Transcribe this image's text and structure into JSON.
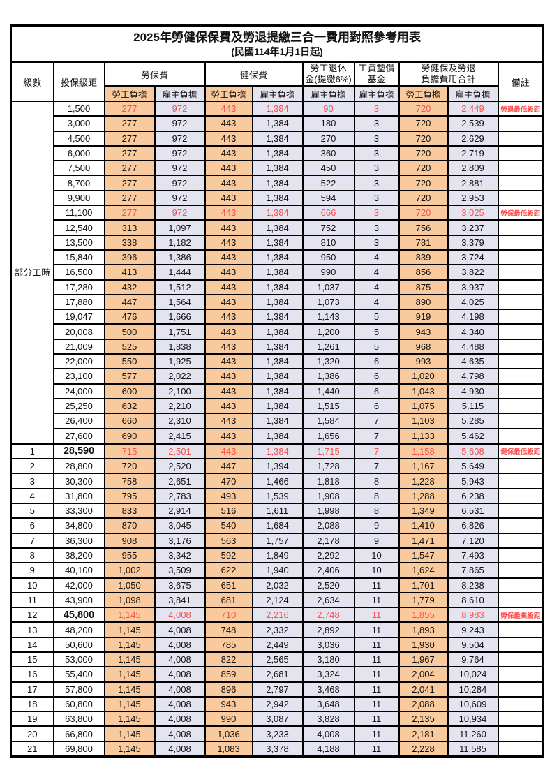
{
  "title": "2025年勞健保保費及勞退提繳三合一費用對照參考用表",
  "subtitle": "(民國114年1月1日起)",
  "colors": {
    "employee_col_bg": "#F8CA9E",
    "employer_col_bg": "#E4E4F1",
    "highlight_text": "#FB4F4C",
    "border": "#000000"
  },
  "headers": {
    "level": "級數",
    "bracket": "投保級距",
    "labor_ins": "勞保費",
    "health_ins": "健保費",
    "pension_line1": "勞工退休",
    "pension_line2": "金(提繳6%)",
    "wage_fund_line1": "工資墊償",
    "wage_fund_line2": "基金",
    "total_line1": "勞健保及勞退",
    "total_line2": "負擔費用合計",
    "note": "備註",
    "employee_share": "勞工負擔",
    "employer_share": "雇主負擔"
  },
  "part_time_label": "部分工時",
  "part_time_rowspan": 23,
  "rows": [
    {
      "level": null,
      "bracket": "1,500",
      "values": [
        "277",
        "972",
        "443",
        "1,384",
        "90",
        "3",
        "720",
        "2,449"
      ],
      "note": "勞退最低級距",
      "highlight": true,
      "bold_bracket": false
    },
    {
      "level": null,
      "bracket": "3,000",
      "values": [
        "277",
        "972",
        "443",
        "1,384",
        "180",
        "3",
        "720",
        "2,539"
      ],
      "note": "",
      "highlight": false,
      "bold_bracket": false
    },
    {
      "level": null,
      "bracket": "4,500",
      "values": [
        "277",
        "972",
        "443",
        "1,384",
        "270",
        "3",
        "720",
        "2,629"
      ],
      "note": "",
      "highlight": false,
      "bold_bracket": false
    },
    {
      "level": null,
      "bracket": "6,000",
      "values": [
        "277",
        "972",
        "443",
        "1,384",
        "360",
        "3",
        "720",
        "2,719"
      ],
      "note": "",
      "highlight": false,
      "bold_bracket": false
    },
    {
      "level": null,
      "bracket": "7,500",
      "values": [
        "277",
        "972",
        "443",
        "1,384",
        "450",
        "3",
        "720",
        "2,809"
      ],
      "note": "",
      "highlight": false,
      "bold_bracket": false
    },
    {
      "level": null,
      "bracket": "8,700",
      "values": [
        "277",
        "972",
        "443",
        "1,384",
        "522",
        "3",
        "720",
        "2,881"
      ],
      "note": "",
      "highlight": false,
      "bold_bracket": false
    },
    {
      "level": null,
      "bracket": "9,900",
      "values": [
        "277",
        "972",
        "443",
        "1,384",
        "594",
        "3",
        "720",
        "2,953"
      ],
      "note": "",
      "highlight": false,
      "bold_bracket": false
    },
    {
      "level": null,
      "bracket": "11,100",
      "values": [
        "277",
        "972",
        "443",
        "1,384",
        "666",
        "3",
        "720",
        "3,025"
      ],
      "note": "勞保最低級距",
      "highlight": true,
      "bold_bracket": false
    },
    {
      "level": null,
      "bracket": "12,540",
      "values": [
        "313",
        "1,097",
        "443",
        "1,384",
        "752",
        "3",
        "756",
        "3,237"
      ],
      "note": "",
      "highlight": false,
      "bold_bracket": false
    },
    {
      "level": null,
      "bracket": "13,500",
      "values": [
        "338",
        "1,182",
        "443",
        "1,384",
        "810",
        "3",
        "781",
        "3,379"
      ],
      "note": "",
      "highlight": false,
      "bold_bracket": false
    },
    {
      "level": null,
      "bracket": "15,840",
      "values": [
        "396",
        "1,386",
        "443",
        "1,384",
        "950",
        "4",
        "839",
        "3,724"
      ],
      "note": "",
      "highlight": false,
      "bold_bracket": false
    },
    {
      "level": null,
      "bracket": "16,500",
      "values": [
        "413",
        "1,444",
        "443",
        "1,384",
        "990",
        "4",
        "856",
        "3,822"
      ],
      "note": "",
      "highlight": false,
      "bold_bracket": false
    },
    {
      "level": null,
      "bracket": "17,280",
      "values": [
        "432",
        "1,512",
        "443",
        "1,384",
        "1,037",
        "4",
        "875",
        "3,937"
      ],
      "note": "",
      "highlight": false,
      "bold_bracket": false
    },
    {
      "level": null,
      "bracket": "17,880",
      "values": [
        "447",
        "1,564",
        "443",
        "1,384",
        "1,073",
        "4",
        "890",
        "4,025"
      ],
      "note": "",
      "highlight": false,
      "bold_bracket": false
    },
    {
      "level": null,
      "bracket": "19,047",
      "values": [
        "476",
        "1,666",
        "443",
        "1,384",
        "1,143",
        "5",
        "919",
        "4,198"
      ],
      "note": "",
      "highlight": false,
      "bold_bracket": false
    },
    {
      "level": null,
      "bracket": "20,008",
      "values": [
        "500",
        "1,751",
        "443",
        "1,384",
        "1,200",
        "5",
        "943",
        "4,340"
      ],
      "note": "",
      "highlight": false,
      "bold_bracket": false
    },
    {
      "level": null,
      "bracket": "21,009",
      "values": [
        "525",
        "1,838",
        "443",
        "1,384",
        "1,261",
        "5",
        "968",
        "4,488"
      ],
      "note": "",
      "highlight": false,
      "bold_bracket": false
    },
    {
      "level": null,
      "bracket": "22,000",
      "values": [
        "550",
        "1,925",
        "443",
        "1,384",
        "1,320",
        "6",
        "993",
        "4,635"
      ],
      "note": "",
      "highlight": false,
      "bold_bracket": false
    },
    {
      "level": null,
      "bracket": "23,100",
      "values": [
        "577",
        "2,022",
        "443",
        "1,384",
        "1,386",
        "6",
        "1,020",
        "4,798"
      ],
      "note": "",
      "highlight": false,
      "bold_bracket": false
    },
    {
      "level": null,
      "bracket": "24,000",
      "values": [
        "600",
        "2,100",
        "443",
        "1,384",
        "1,440",
        "6",
        "1,043",
        "4,930"
      ],
      "note": "",
      "highlight": false,
      "bold_bracket": false
    },
    {
      "level": null,
      "bracket": "25,250",
      "values": [
        "632",
        "2,210",
        "443",
        "1,384",
        "1,515",
        "6",
        "1,075",
        "5,115"
      ],
      "note": "",
      "highlight": false,
      "bold_bracket": false
    },
    {
      "level": null,
      "bracket": "26,400",
      "values": [
        "660",
        "2,310",
        "443",
        "1,384",
        "1,584",
        "7",
        "1,103",
        "5,285"
      ],
      "note": "",
      "highlight": false,
      "bold_bracket": false
    },
    {
      "level": null,
      "bracket": "27,600",
      "values": [
        "690",
        "2,415",
        "443",
        "1,384",
        "1,656",
        "7",
        "1,133",
        "5,462"
      ],
      "note": "",
      "highlight": false,
      "bold_bracket": false
    },
    {
      "level": "1",
      "bracket": "28,590",
      "values": [
        "715",
        "2,501",
        "443",
        "1,384",
        "1,715",
        "7",
        "1,158",
        "5,608"
      ],
      "note": "健保最低級距",
      "highlight": true,
      "bold_bracket": true
    },
    {
      "level": "2",
      "bracket": "28,800",
      "values": [
        "720",
        "2,520",
        "447",
        "1,394",
        "1,728",
        "7",
        "1,167",
        "5,649"
      ],
      "note": "",
      "highlight": false,
      "bold_bracket": false
    },
    {
      "level": "3",
      "bracket": "30,300",
      "values": [
        "758",
        "2,651",
        "470",
        "1,466",
        "1,818",
        "8",
        "1,228",
        "5,943"
      ],
      "note": "",
      "highlight": false,
      "bold_bracket": false
    },
    {
      "level": "4",
      "bracket": "31,800",
      "values": [
        "795",
        "2,783",
        "493",
        "1,539",
        "1,908",
        "8",
        "1,288",
        "6,238"
      ],
      "note": "",
      "highlight": false,
      "bold_bracket": false
    },
    {
      "level": "5",
      "bracket": "33,300",
      "values": [
        "833",
        "2,914",
        "516",
        "1,611",
        "1,998",
        "8",
        "1,349",
        "6,531"
      ],
      "note": "",
      "highlight": false,
      "bold_bracket": false
    },
    {
      "level": "6",
      "bracket": "34,800",
      "values": [
        "870",
        "3,045",
        "540",
        "1,684",
        "2,088",
        "9",
        "1,410",
        "6,826"
      ],
      "note": "",
      "highlight": false,
      "bold_bracket": false
    },
    {
      "level": "7",
      "bracket": "36,300",
      "values": [
        "908",
        "3,176",
        "563",
        "1,757",
        "2,178",
        "9",
        "1,471",
        "7,120"
      ],
      "note": "",
      "highlight": false,
      "bold_bracket": false
    },
    {
      "level": "8",
      "bracket": "38,200",
      "values": [
        "955",
        "3,342",
        "592",
        "1,849",
        "2,292",
        "10",
        "1,547",
        "7,493"
      ],
      "note": "",
      "highlight": false,
      "bold_bracket": false
    },
    {
      "level": "9",
      "bracket": "40,100",
      "values": [
        "1,002",
        "3,509",
        "622",
        "1,940",
        "2,406",
        "10",
        "1,624",
        "7,865"
      ],
      "note": "",
      "highlight": false,
      "bold_bracket": false
    },
    {
      "level": "10",
      "bracket": "42,000",
      "values": [
        "1,050",
        "3,675",
        "651",
        "2,032",
        "2,520",
        "11",
        "1,701",
        "8,238"
      ],
      "note": "",
      "highlight": false,
      "bold_bracket": false
    },
    {
      "level": "11",
      "bracket": "43,900",
      "values": [
        "1,098",
        "3,841",
        "681",
        "2,124",
        "2,634",
        "11",
        "1,779",
        "8,610"
      ],
      "note": "",
      "highlight": false,
      "bold_bracket": false
    },
    {
      "level": "12",
      "bracket": "45,800",
      "values": [
        "1,145",
        "4,008",
        "710",
        "2,216",
        "2,748",
        "11",
        "1,855",
        "8,983"
      ],
      "note": "勞保最高級距",
      "highlight": true,
      "bold_bracket": true
    },
    {
      "level": "13",
      "bracket": "48,200",
      "values": [
        "1,145",
        "4,008",
        "748",
        "2,332",
        "2,892",
        "11",
        "1,893",
        "9,243"
      ],
      "note": "",
      "highlight": false,
      "bold_bracket": false
    },
    {
      "level": "14",
      "bracket": "50,600",
      "values": [
        "1,145",
        "4,008",
        "785",
        "2,449",
        "3,036",
        "11",
        "1,930",
        "9,504"
      ],
      "note": "",
      "highlight": false,
      "bold_bracket": false
    },
    {
      "level": "15",
      "bracket": "53,000",
      "values": [
        "1,145",
        "4,008",
        "822",
        "2,565",
        "3,180",
        "11",
        "1,967",
        "9,764"
      ],
      "note": "",
      "highlight": false,
      "bold_bracket": false
    },
    {
      "level": "16",
      "bracket": "55,400",
      "values": [
        "1,145",
        "4,008",
        "859",
        "2,681",
        "3,324",
        "11",
        "2,004",
        "10,024"
      ],
      "note": "",
      "highlight": false,
      "bold_bracket": false
    },
    {
      "level": "17",
      "bracket": "57,800",
      "values": [
        "1,145",
        "4,008",
        "896",
        "2,797",
        "3,468",
        "11",
        "2,041",
        "10,284"
      ],
      "note": "",
      "highlight": false,
      "bold_bracket": false
    },
    {
      "level": "18",
      "bracket": "60,800",
      "values": [
        "1,145",
        "4,008",
        "943",
        "2,942",
        "3,648",
        "11",
        "2,088",
        "10,609"
      ],
      "note": "",
      "highlight": false,
      "bold_bracket": false
    },
    {
      "level": "19",
      "bracket": "63,800",
      "values": [
        "1,145",
        "4,008",
        "990",
        "3,087",
        "3,828",
        "11",
        "2,135",
        "10,934"
      ],
      "note": "",
      "highlight": false,
      "bold_bracket": false
    },
    {
      "level": "20",
      "bracket": "66,800",
      "values": [
        "1,145",
        "4,008",
        "1,036",
        "3,233",
        "4,008",
        "11",
        "2,181",
        "11,260"
      ],
      "note": "",
      "highlight": false,
      "bold_bracket": false
    },
    {
      "level": "21",
      "bracket": "69,800",
      "values": [
        "1,145",
        "4,008",
        "1,083",
        "3,378",
        "4,188",
        "11",
        "2,228",
        "11,585"
      ],
      "note": "",
      "highlight": false,
      "bold_bracket": false
    }
  ]
}
